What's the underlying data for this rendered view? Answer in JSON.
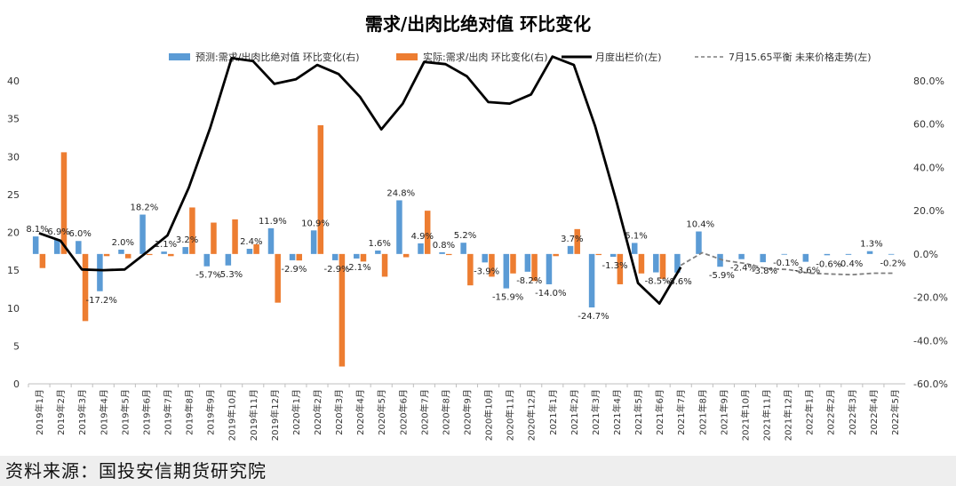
{
  "chart_data": {
    "type": "bar",
    "title": "需求/出肉比绝对值 环比变化",
    "categories": [
      "2019年1月",
      "2019年2月",
      "2019年3月",
      "2019年4月",
      "2019年5月",
      "2019年6月",
      "2019年7月",
      "2019年8月",
      "2019年9月",
      "2019年10月",
      "2019年11月",
      "2019年12月",
      "2020年1月",
      "2020年2月",
      "2020年3月",
      "2020年4月",
      "2020年5月",
      "2020年6月",
      "2020年7月",
      "2020年8月",
      "2020年9月",
      "2020年10月",
      "2020年11月",
      "2020年12月",
      "2021年1月",
      "2021年2月",
      "2021年3月",
      "2021年4月",
      "2021年5月",
      "2021年6月",
      "2021年7月",
      "2021年8月",
      "2021年9月",
      "2021年10月",
      "2021年11月",
      "2021年12月",
      "2022年1月",
      "2022年2月",
      "2022年3月",
      "2022年4月",
      "2022年5月"
    ],
    "y_left": {
      "ticks": [
        "0",
        "5",
        "10",
        "15",
        "20",
        "25",
        "30",
        "35",
        "40"
      ],
      "range": [
        0,
        40
      ]
    },
    "y_right": {
      "ticks": [
        "-60.0%",
        "-40.0%",
        "-20.0%",
        "0.0%",
        "20.0%",
        "40.0%",
        "60.0%",
        "80.0%"
      ],
      "range": [
        -60,
        80
      ]
    },
    "series": [
      {
        "name": "预测:需求/出肉比绝对值 环比变化(右)",
        "kind": "bar",
        "axis": "right",
        "color": "#5b9bd5",
        "values": [
          8.1,
          6.9,
          6.0,
          -17.2,
          2.0,
          18.2,
          1.1,
          3.2,
          -5.7,
          -5.3,
          2.4,
          11.9,
          -2.9,
          10.9,
          -2.9,
          -2.1,
          1.6,
          24.8,
          4.9,
          0.8,
          5.2,
          -3.9,
          -15.9,
          -8.2,
          -14.0,
          3.7,
          -24.7,
          -1.3,
          5.1,
          -8.5,
          -8.6,
          10.4,
          -5.9,
          -2.4,
          -3.8,
          -0.1,
          -3.6,
          -0.6,
          -0.4,
          1.3,
          -0.2
        ]
      },
      {
        "name": "实际:需求/出肉 环比变化(右)",
        "kind": "bar",
        "axis": "right",
        "color": "#ed7d31",
        "values": [
          -6.5,
          47.0,
          -31.0,
          -1.0,
          -2.0,
          -0.5,
          -1.0,
          21.5,
          14.5,
          16.0,
          4.5,
          -22.5,
          -3.0,
          59.5,
          -52.0,
          -3.5,
          -10.5,
          -1.5,
          20.0,
          -0.5,
          -14.5,
          -10.5,
          -9.0,
          -12.5,
          -1.0,
          11.5,
          -0.5,
          -14.0,
          -9.0,
          -11.5,
          null,
          null,
          null,
          null,
          null,
          null,
          null,
          null,
          null,
          null,
          null
        ]
      },
      {
        "name": "月度出栏价(左)",
        "kind": "line",
        "axis": "left",
        "color": "#000000",
        "values": [
          19.9,
          18.9,
          15.1,
          15.0,
          15.1,
          17.3,
          19.6,
          25.9,
          33.8,
          43.0,
          42.6,
          39.6,
          40.2,
          42.1,
          40.9,
          37.9,
          33.6,
          37.0,
          42.5,
          42.2,
          40.6,
          37.2,
          37.0,
          38.2,
          43.2,
          42.1,
          34.0,
          24.0,
          13.3,
          10.6,
          15.4,
          null,
          null,
          null,
          null,
          null,
          null,
          null,
          null,
          null,
          null
        ]
      },
      {
        "name": "7月15.65平衡 未来价格走势(左)",
        "kind": "line-dashed",
        "axis": "left",
        "color": "#7f7f7f",
        "values": [
          null,
          null,
          null,
          null,
          null,
          null,
          null,
          null,
          null,
          null,
          null,
          null,
          null,
          null,
          null,
          null,
          null,
          null,
          null,
          null,
          null,
          null,
          null,
          null,
          null,
          null,
          null,
          null,
          null,
          null,
          15.65,
          17.3,
          16.3,
          15.9,
          15.2,
          15.1,
          14.6,
          14.5,
          14.4,
          14.6,
          14.6
        ]
      }
    ],
    "data_labels": [
      "8.1%",
      "6.9%",
      "6.0%",
      "-17.2%",
      "2.0%",
      "18.2%",
      "1.1%",
      "3.2%",
      "-5.7%",
      "-5.3%",
      "2.4%",
      "11.9%",
      "-2.9%",
      "10.9%",
      "-2.9%",
      "-2.1%",
      "1.6%",
      "24.8%",
      "4.9%",
      "0.8%",
      "5.2%",
      "-3.9%",
      "-15.9%",
      "-8.2%",
      "-14.0%",
      "3.7%",
      "-24.7%",
      "-1.3%",
      "5.1%",
      "-8.5%",
      "-8.6%",
      "10.4%",
      "-5.9%",
      "-2.4%",
      "-3.8%",
      "-0.1%",
      "-3.6%",
      "-0.6%",
      "-0.4%",
      "1.3%",
      "-0.2%"
    ],
    "legend_position": "top",
    "grid": false
  },
  "source": "资料来源：国投安信期货研究院"
}
